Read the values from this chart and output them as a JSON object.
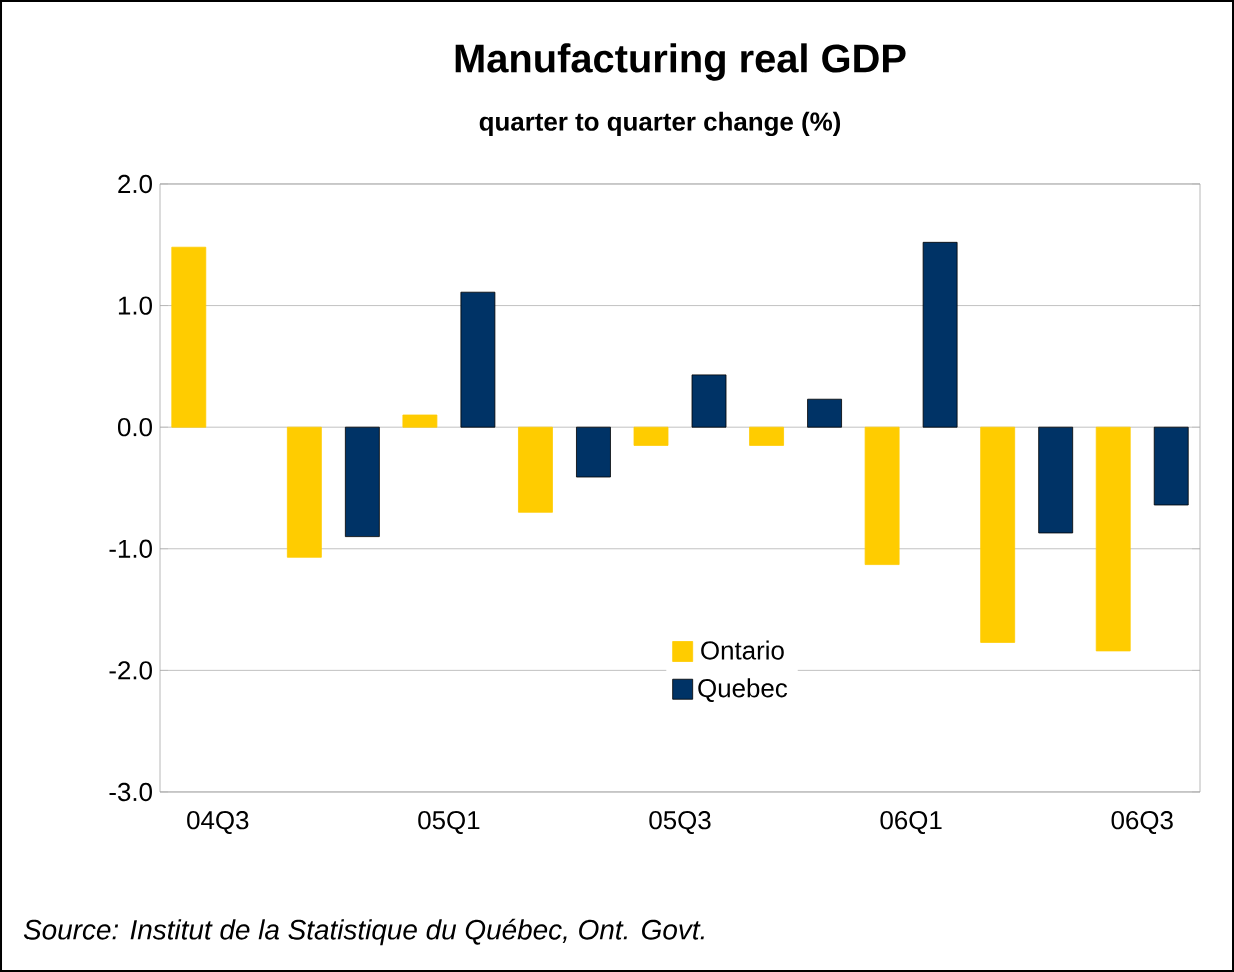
{
  "chart_data": {
    "type": "bar",
    "title": "Manufacturing real GDP",
    "subtitle": "quarter to quarter change (%)",
    "categories": [
      "04Q3",
      null,
      "05Q1",
      null,
      "05Q3",
      null,
      "06Q1",
      null,
      "06Q3"
    ],
    "series": [
      {
        "name": "Ontario",
        "color": "#ffcc00",
        "values": [
          1.48,
          -1.07,
          0.1,
          -0.7,
          -0.15,
          -0.15,
          -1.13,
          -1.77,
          -1.84
        ]
      },
      {
        "name": "Quebec",
        "color": "#003366",
        "values": [
          null,
          -0.9,
          1.11,
          -0.41,
          0.43,
          0.23,
          1.52,
          -0.87,
          -0.64
        ]
      }
    ],
    "ylim": [
      -3,
      2
    ],
    "yticks": [
      {
        "value": -3,
        "label": "-3.0"
      },
      {
        "value": -2,
        "label": "-2.0"
      },
      {
        "value": -1,
        "label": "-1.0"
      },
      {
        "value": 0,
        "label": "0.0"
      },
      {
        "value": 1,
        "label": "1.0"
      },
      {
        "value": 2,
        "label": "2.0"
      }
    ],
    "grid": "y",
    "legend": "bottom",
    "annotations": [
      "Source: Institut de la Statistique du Québec, Ont. Govt."
    ]
  }
}
